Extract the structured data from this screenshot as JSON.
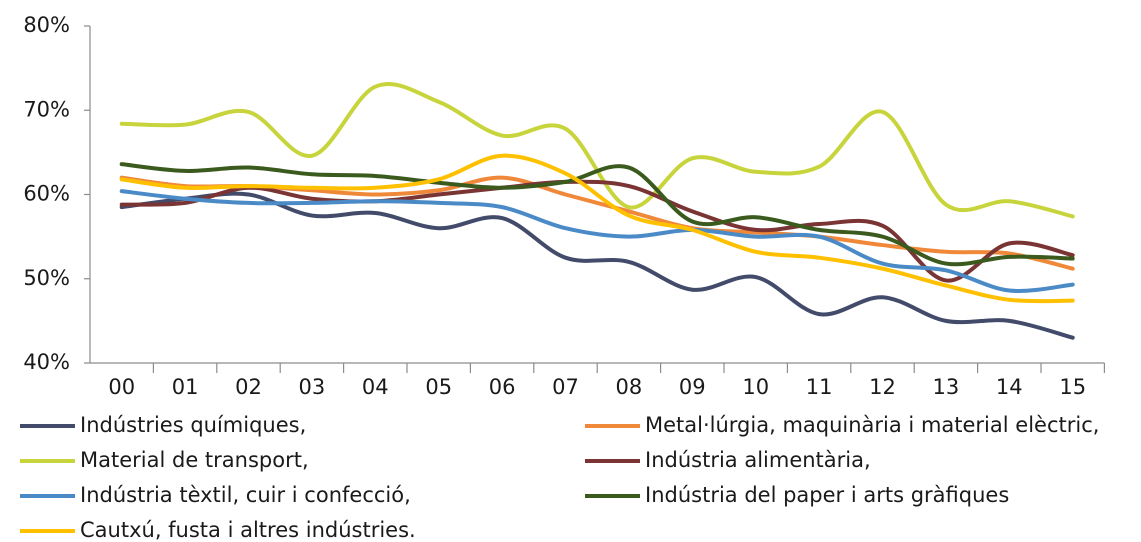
{
  "chart_data": {
    "type": "line",
    "categories": [
      "00",
      "01",
      "02",
      "03",
      "04",
      "05",
      "06",
      "07",
      "08",
      "09",
      "10",
      "11",
      "12",
      "13",
      "14",
      "15"
    ],
    "ylim": [
      40,
      80
    ],
    "yticks": [
      {
        "value": 40,
        "label": "40%"
      },
      {
        "value": 50,
        "label": "50%"
      },
      {
        "value": 60,
        "label": "60%"
      },
      {
        "value": 70,
        "label": "70%"
      },
      {
        "value": 80,
        "label": "80%"
      }
    ],
    "smooth": true,
    "series": [
      {
        "name": "Indústries químiques,",
        "color": "#434b6b",
        "values": [
          58.5,
          59.5,
          60,
          57.5,
          57.8,
          56,
          57.2,
          52.5,
          52,
          48.7,
          50.2,
          45.8,
          47.8,
          45,
          45,
          43
        ]
      },
      {
        "name": "Metal·lúrgia, maquinària i material elèctric,",
        "color": "#f0883a",
        "values": [
          62,
          61,
          61,
          60.5,
          60,
          60.5,
          62,
          60,
          58,
          56,
          55.5,
          55,
          54,
          53.2,
          53,
          51.2
        ]
      },
      {
        "name": "Material de transport,",
        "color": "#c8d43c",
        "values": [
          68.4,
          68.3,
          69.8,
          64.6,
          72.8,
          71,
          67,
          67.8,
          58.5,
          64.3,
          62.7,
          63.3,
          69.8,
          58.8,
          59.2,
          57.4
        ]
      },
      {
        "name": "Indústria alimentària,",
        "color": "#7a3434",
        "values": [
          58.8,
          59,
          60.8,
          59.5,
          59.2,
          60,
          60.8,
          61.5,
          61,
          58,
          55.8,
          56.5,
          56.3,
          49.8,
          54.2,
          52.8
        ]
      },
      {
        "name": "Indústria tèxtil, cuir i confecció,",
        "color": "#4a8ac6",
        "values": [
          60.4,
          59.5,
          59,
          59,
          59.2,
          59,
          58.5,
          56,
          55,
          55.8,
          55,
          55,
          51.8,
          51,
          48.6,
          49.3
        ]
      },
      {
        "name": "Indústria del paper i arts gràfiques",
        "color": "#3a5a1e",
        "values": [
          63.6,
          62.8,
          63.2,
          62.4,
          62.2,
          61.4,
          60.8,
          61.5,
          63.2,
          56.8,
          57.3,
          55.8,
          55,
          51.8,
          52.6,
          52.4
        ]
      },
      {
        "name": "Cautxú, fusta i altres indústries.",
        "color": "#ffc000",
        "values": [
          61.8,
          60.8,
          61,
          60.8,
          60.8,
          61.8,
          64.6,
          62.5,
          57.5,
          55.8,
          53.2,
          52.5,
          51.2,
          49.2,
          47.5,
          47.4
        ]
      }
    ]
  }
}
